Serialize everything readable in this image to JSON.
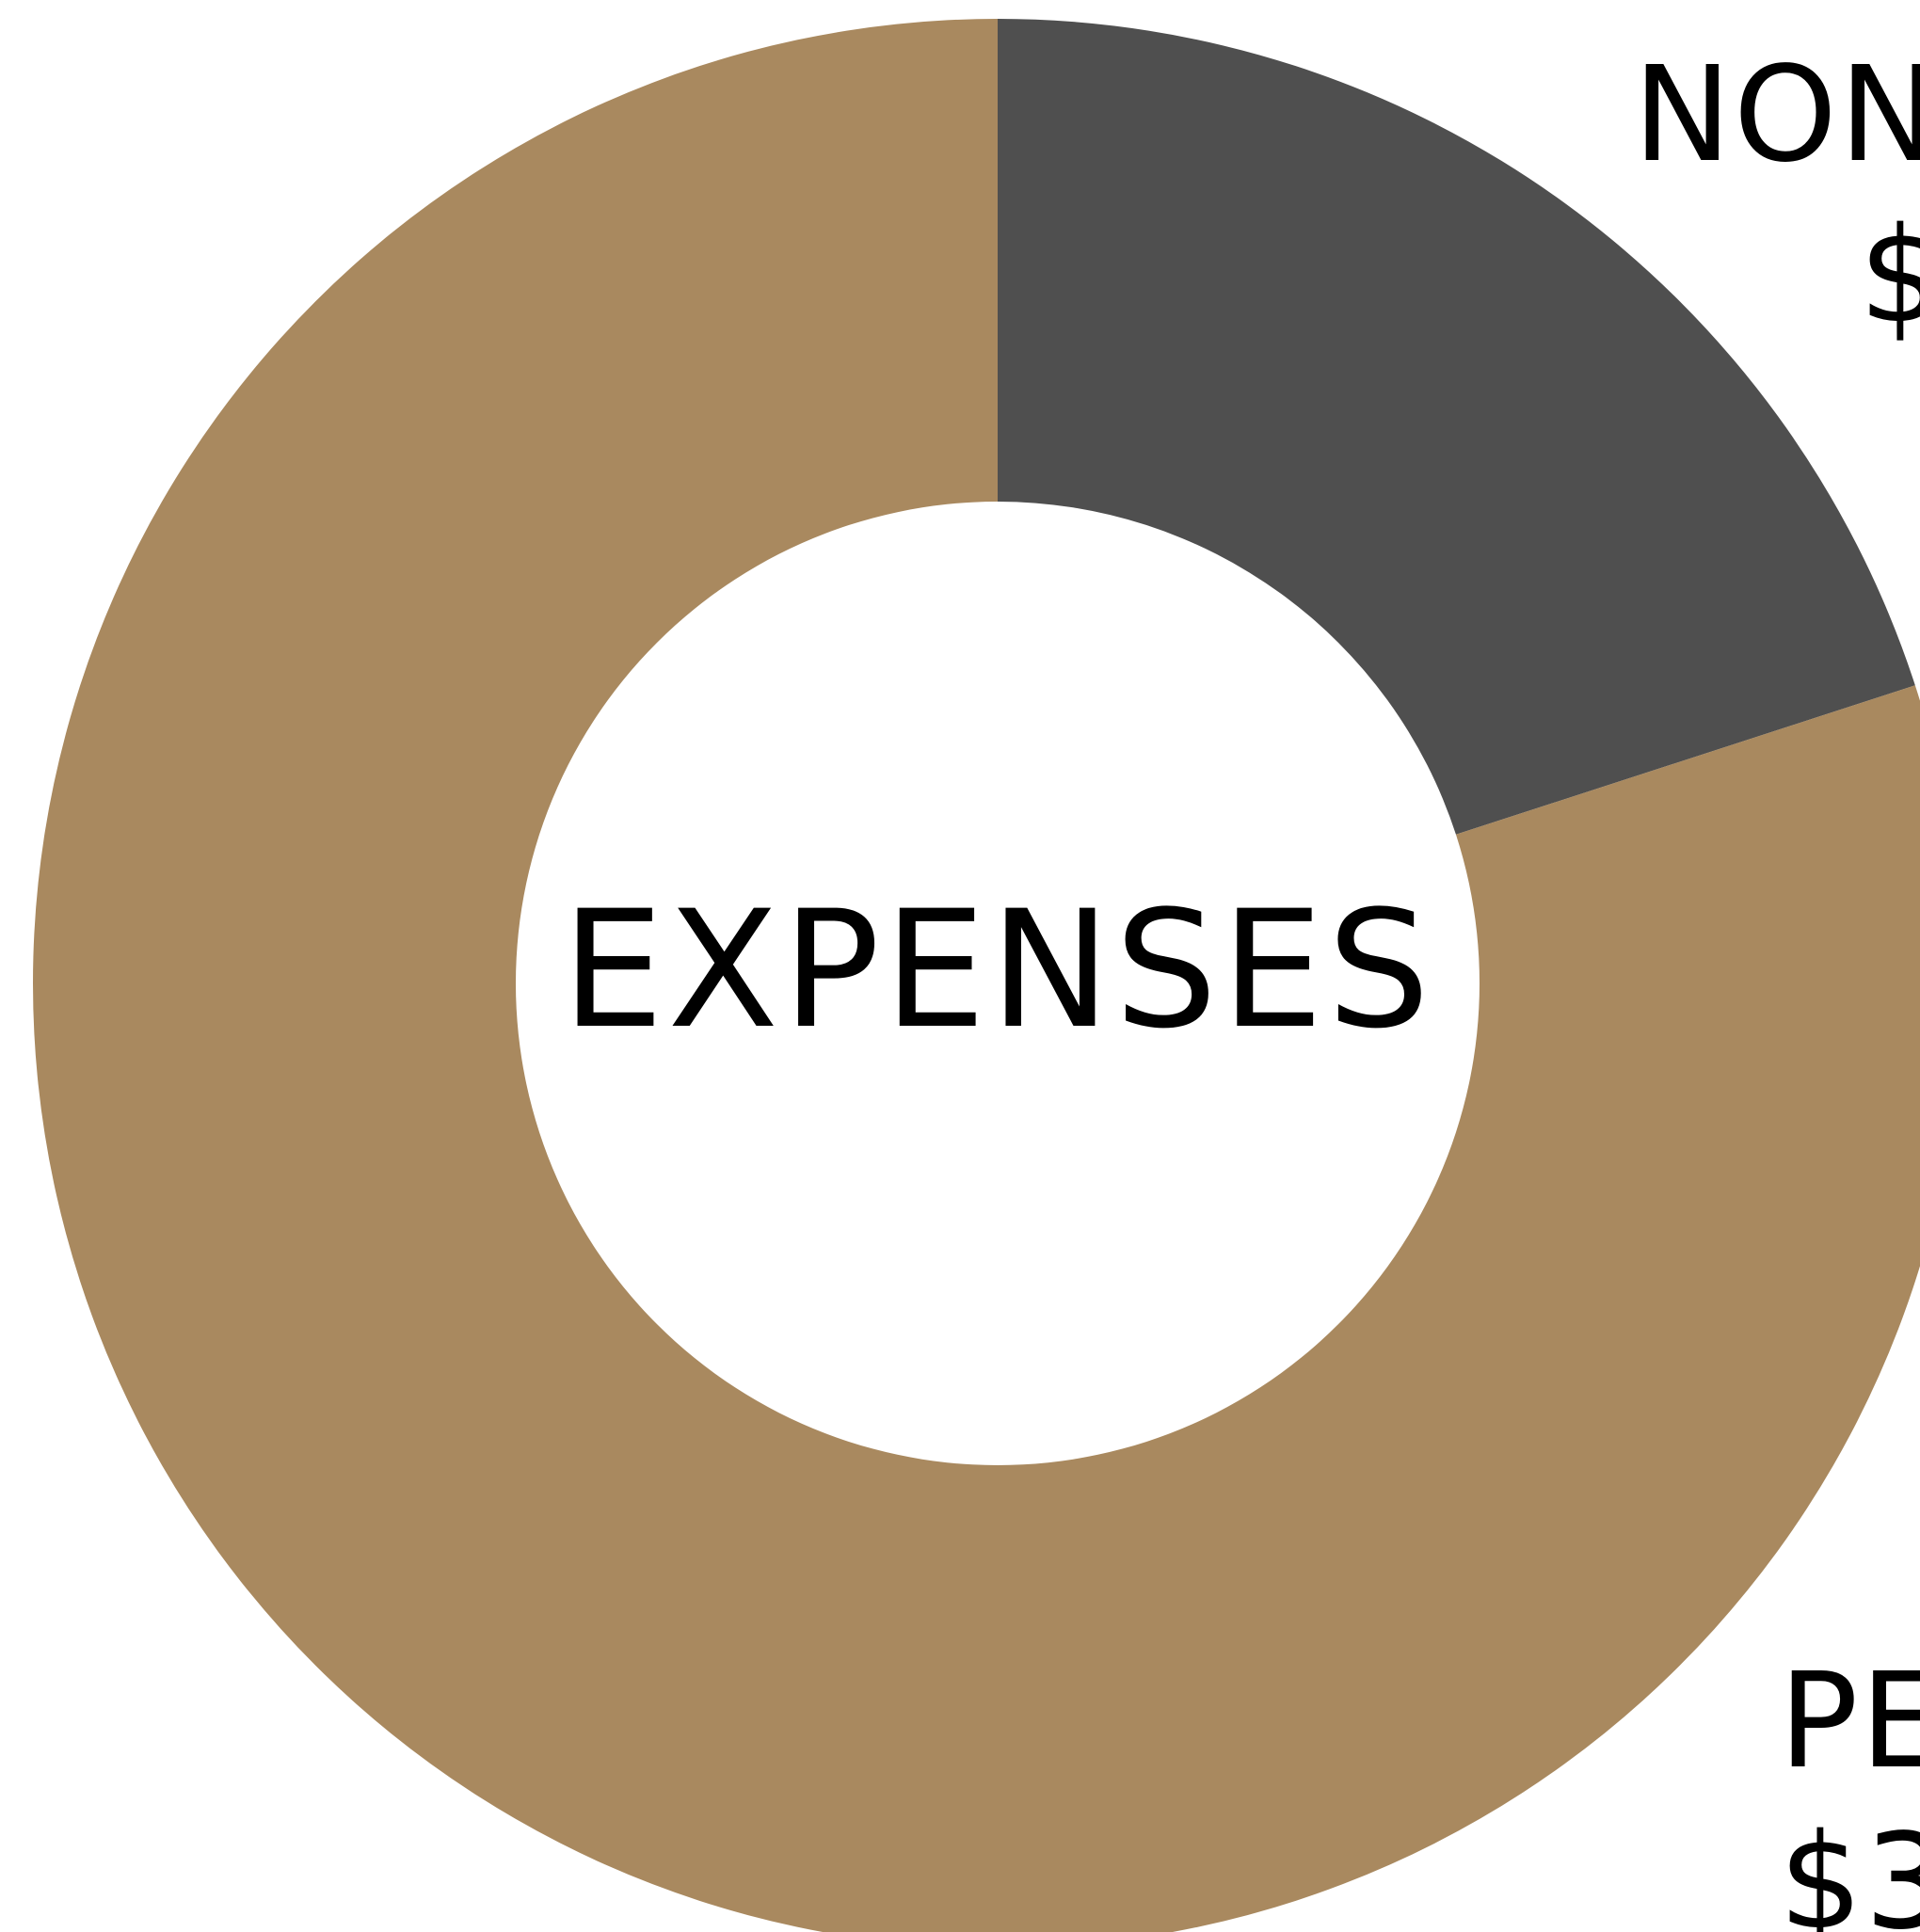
{
  "chart_data": {
    "type": "pie",
    "center_label": "EXPENSES",
    "slice_colors": [
      "#4f4f4f",
      "#a9895f"
    ],
    "background_color": "#ffffff",
    "slices": [
      {
        "share_percent": 20
      },
      {
        "share_percent": 80
      }
    ],
    "labels": [
      {
        "text": "NON",
        "value": "$"
      },
      {
        "text": "PE",
        "value": "$3"
      }
    ]
  }
}
